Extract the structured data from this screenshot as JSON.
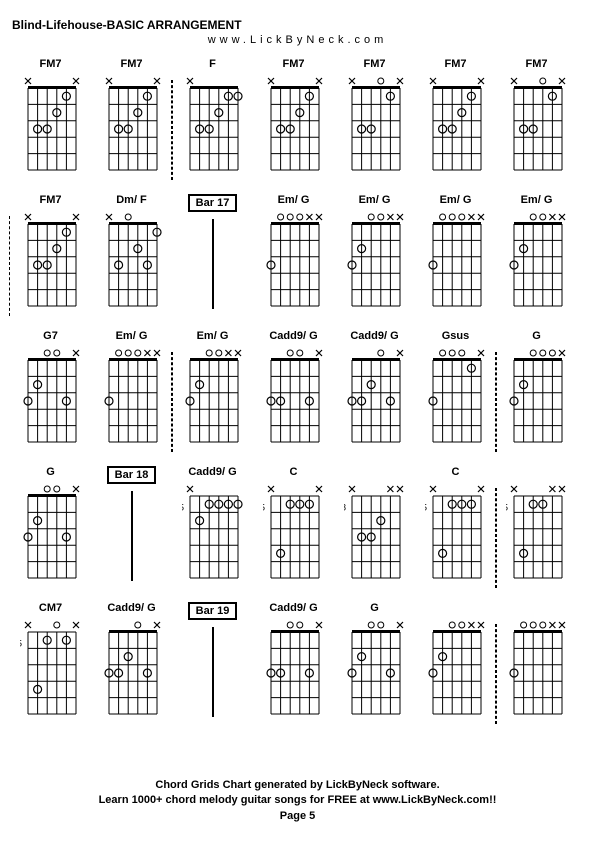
{
  "title": "Blind-Lifehouse-BASIC ARRANGEMENT",
  "subtitle": "www.LickByNeck.com",
  "footer_line1": "Chord Grids Chart generated by LickByNeck software.",
  "footer_line2": "Learn 1000+ chord melody guitar songs for FREE at www.LickByNeck.com!!",
  "footer_page": "Page 5",
  "diagram_style": {
    "strings": 6,
    "frets": 5,
    "grid_color": "#000000",
    "nut_width": 3,
    "line_width": 1,
    "dot_radius": 4,
    "open_radius": 3,
    "mute_size": 6,
    "font_size": 9
  },
  "chords": [
    {
      "label": "FM7",
      "type": "chord",
      "baseFret": 0,
      "markers": {
        "mute": [
          1,
          6
        ],
        "open": [],
        "dots": [
          [
            2,
            1
          ],
          [
            3,
            2
          ],
          [
            4,
            3
          ],
          [
            5,
            3
          ]
        ]
      },
      "dashedLeft": false,
      "dashedRight": false
    },
    {
      "label": "FM7",
      "type": "chord",
      "baseFret": 0,
      "markers": {
        "mute": [
          1,
          6
        ],
        "open": [],
        "dots": [
          [
            2,
            1
          ],
          [
            3,
            2
          ],
          [
            4,
            3
          ],
          [
            5,
            3
          ]
        ]
      },
      "dashedLeft": false,
      "dashedRight": true
    },
    {
      "label": "F",
      "type": "chord",
      "baseFret": 0,
      "markers": {
        "mute": [
          6
        ],
        "open": [],
        "dots": [
          [
            1,
            1
          ],
          [
            2,
            1
          ],
          [
            3,
            2
          ],
          [
            4,
            3
          ],
          [
            5,
            3
          ]
        ]
      },
      "dashedLeft": true,
      "dashedRight": false
    },
    {
      "label": "FM7",
      "type": "chord",
      "baseFret": 0,
      "markers": {
        "mute": [
          1,
          6
        ],
        "open": [],
        "dots": [
          [
            2,
            1
          ],
          [
            3,
            2
          ],
          [
            4,
            3
          ],
          [
            5,
            3
          ]
        ]
      },
      "dashedLeft": false,
      "dashedRight": false
    },
    {
      "label": "FM7",
      "type": "chord",
      "baseFret": 0,
      "markers": {
        "mute": [
          1,
          6
        ],
        "open": [
          3
        ],
        "dots": [
          [
            2,
            1
          ],
          [
            4,
            3
          ],
          [
            5,
            3
          ]
        ]
      },
      "dashedLeft": false,
      "dashedRight": false
    },
    {
      "label": "FM7",
      "type": "chord",
      "baseFret": 0,
      "markers": {
        "mute": [
          1,
          6
        ],
        "open": [],
        "dots": [
          [
            2,
            1
          ],
          [
            3,
            2
          ],
          [
            4,
            3
          ],
          [
            5,
            3
          ]
        ]
      },
      "dashedLeft": false,
      "dashedRight": false
    },
    {
      "label": "FM7",
      "type": "chord",
      "baseFret": 0,
      "markers": {
        "mute": [
          1,
          6
        ],
        "open": [
          3
        ],
        "dots": [
          [
            2,
            1
          ],
          [
            4,
            3
          ],
          [
            5,
            3
          ]
        ]
      },
      "dashedLeft": false,
      "dashedRight": false
    },
    {
      "label": "FM7",
      "type": "chord",
      "baseFret": 0,
      "markers": {
        "mute": [
          1,
          6
        ],
        "open": [],
        "dots": [
          [
            2,
            1
          ],
          [
            3,
            2
          ],
          [
            4,
            3
          ],
          [
            5,
            3
          ]
        ]
      },
      "dashedLeft": true,
      "dashedRight": false
    },
    {
      "label": "Dm/ F",
      "type": "chord",
      "baseFret": 0,
      "markers": {
        "mute": [
          6
        ],
        "open": [
          4
        ],
        "dots": [
          [
            1,
            1
          ],
          [
            2,
            3
          ],
          [
            3,
            2
          ],
          [
            5,
            3
          ]
        ]
      },
      "dashedLeft": false,
      "dashedRight": false
    },
    {
      "label": "Bar 17",
      "type": "bar"
    },
    {
      "label": "Em/ G",
      "type": "chord",
      "baseFret": 0,
      "markers": {
        "mute": [
          1,
          2
        ],
        "open": [
          3,
          4,
          5
        ],
        "dots": [
          [
            6,
            3
          ]
        ]
      },
      "dashedLeft": false,
      "dashedRight": false
    },
    {
      "label": "Em/ G",
      "type": "chord",
      "baseFret": 0,
      "markers": {
        "mute": [
          1,
          2
        ],
        "open": [
          3,
          4
        ],
        "dots": [
          [
            5,
            2
          ],
          [
            6,
            3
          ]
        ]
      },
      "dashedLeft": false,
      "dashedRight": false
    },
    {
      "label": "Em/ G",
      "type": "chord",
      "baseFret": 0,
      "markers": {
        "mute": [
          1,
          2
        ],
        "open": [
          3,
          4,
          5
        ],
        "dots": [
          [
            6,
            3
          ]
        ]
      },
      "dashedLeft": false,
      "dashedRight": false
    },
    {
      "label": "Em/ G",
      "type": "chord",
      "baseFret": 0,
      "markers": {
        "mute": [
          1,
          2
        ],
        "open": [
          3,
          4
        ],
        "dots": [
          [
            5,
            2
          ],
          [
            6,
            3
          ]
        ]
      },
      "dashedLeft": false,
      "dashedRight": false
    },
    {
      "label": "G7",
      "type": "chord",
      "baseFret": 0,
      "markers": {
        "mute": [
          1
        ],
        "open": [
          3,
          4
        ],
        "dots": [
          [
            2,
            3
          ],
          [
            5,
            2
          ],
          [
            6,
            3
          ]
        ]
      },
      "dashedLeft": false,
      "dashedRight": false
    },
    {
      "label": "Em/ G",
      "type": "chord",
      "baseFret": 0,
      "markers": {
        "mute": [
          1,
          2
        ],
        "open": [
          3,
          4,
          5
        ],
        "dots": [
          [
            6,
            3
          ]
        ]
      },
      "dashedLeft": false,
      "dashedRight": true
    },
    {
      "label": "Em/ G",
      "type": "chord",
      "baseFret": 0,
      "markers": {
        "mute": [
          1,
          2
        ],
        "open": [
          3,
          4
        ],
        "dots": [
          [
            5,
            2
          ],
          [
            6,
            3
          ]
        ]
      },
      "dashedLeft": true,
      "dashedRight": false
    },
    {
      "label": "Cadd9/ G",
      "type": "chord",
      "baseFret": 0,
      "markers": {
        "mute": [
          1
        ],
        "open": [
          3,
          4
        ],
        "dots": [
          [
            2,
            3
          ],
          [
            5,
            3
          ],
          [
            6,
            3
          ]
        ]
      },
      "dashedLeft": false,
      "dashedRight": false
    },
    {
      "label": "Cadd9/ G",
      "type": "chord",
      "baseFret": 0,
      "markers": {
        "mute": [
          1
        ],
        "open": [
          3
        ],
        "dots": [
          [
            2,
            3
          ],
          [
            4,
            2
          ],
          [
            5,
            3
          ],
          [
            6,
            3
          ]
        ]
      },
      "dashedLeft": false,
      "dashedRight": false
    },
    {
      "label": "Gsus",
      "type": "chord",
      "baseFret": 0,
      "markers": {
        "mute": [
          1
        ],
        "open": [
          3,
          4,
          5
        ],
        "dots": [
          [
            2,
            1
          ],
          [
            6,
            3
          ]
        ]
      },
      "dashedLeft": false,
      "dashedRight": true
    },
    {
      "label": "G",
      "type": "chord",
      "baseFret": 0,
      "markers": {
        "mute": [
          1
        ],
        "open": [
          2,
          3,
          4
        ],
        "dots": [
          [
            5,
            2
          ],
          [
            6,
            3
          ]
        ]
      },
      "dashedLeft": true,
      "dashedRight": false
    },
    {
      "label": "G",
      "type": "chord",
      "baseFret": 0,
      "markers": {
        "mute": [
          1
        ],
        "open": [
          3,
          4
        ],
        "dots": [
          [
            2,
            3
          ],
          [
            5,
            2
          ],
          [
            6,
            3
          ]
        ]
      },
      "dashedLeft": false,
      "dashedRight": false
    },
    {
      "label": "Bar 18",
      "type": "bar"
    },
    {
      "label": "Cadd9/ G",
      "type": "chord",
      "baseFret": 5,
      "markers": {
        "mute": [
          6
        ],
        "open": [],
        "dots": [
          [
            1,
            1
          ],
          [
            2,
            1
          ],
          [
            3,
            1
          ],
          [
            4,
            1
          ],
          [
            5,
            2
          ]
        ]
      },
      "dashedLeft": false,
      "dashedRight": false
    },
    {
      "label": "C",
      "type": "chord",
      "baseFret": 5,
      "markers": {
        "mute": [
          1,
          6
        ],
        "open": [],
        "dots": [
          [
            2,
            1
          ],
          [
            3,
            1
          ],
          [
            4,
            1
          ],
          [
            5,
            4
          ]
        ]
      },
      "dashedLeft": false,
      "dashedRight": false
    },
    {
      "label": "",
      "type": "chord",
      "baseFret": 8,
      "markers": {
        "mute": [
          1,
          2,
          6
        ],
        "open": [],
        "dots": [
          [
            3,
            2
          ],
          [
            4,
            3
          ],
          [
            5,
            3
          ]
        ]
      },
      "dashedLeft": false,
      "dashedRight": false
    },
    {
      "label": "C",
      "type": "chord",
      "baseFret": 5,
      "markers": {
        "mute": [
          1,
          6
        ],
        "open": [],
        "dots": [
          [
            2,
            1
          ],
          [
            3,
            1
          ],
          [
            4,
            1
          ],
          [
            5,
            4
          ]
        ]
      },
      "dashedLeft": false,
      "dashedRight": true
    },
    {
      "label": "",
      "type": "chord",
      "baseFret": 5,
      "markers": {
        "mute": [
          1,
          2,
          6
        ],
        "open": [],
        "dots": [
          [
            3,
            1
          ],
          [
            4,
            1
          ],
          [
            5,
            4
          ]
        ]
      },
      "dashedLeft": true,
      "dashedRight": false
    },
    {
      "label": "CM7",
      "type": "chord",
      "baseFret": 5,
      "markers": {
        "mute": [
          1,
          6
        ],
        "open": [
          3
        ],
        "dots": [
          [
            2,
            1
          ],
          [
            4,
            1
          ],
          [
            5,
            4
          ]
        ]
      },
      "dashedLeft": false,
      "dashedRight": false
    },
    {
      "label": "Cadd9/ G",
      "type": "chord",
      "baseFret": 0,
      "markers": {
        "mute": [
          1
        ],
        "open": [
          3
        ],
        "dots": [
          [
            2,
            3
          ],
          [
            4,
            2
          ],
          [
            5,
            3
          ],
          [
            6,
            3
          ]
        ]
      },
      "dashedLeft": false,
      "dashedRight": false
    },
    {
      "label": "Bar 19",
      "type": "bar"
    },
    {
      "label": "Cadd9/ G",
      "type": "chord",
      "baseFret": 0,
      "markers": {
        "mute": [
          1
        ],
        "open": [
          3,
          4
        ],
        "dots": [
          [
            2,
            3
          ],
          [
            5,
            3
          ],
          [
            6,
            3
          ]
        ]
      },
      "dashedLeft": false,
      "dashedRight": false
    },
    {
      "label": "G",
      "type": "chord",
      "baseFret": 0,
      "markers": {
        "mute": [
          1
        ],
        "open": [
          3,
          4
        ],
        "dots": [
          [
            2,
            3
          ],
          [
            5,
            2
          ],
          [
            6,
            3
          ]
        ]
      },
      "dashedLeft": false,
      "dashedRight": false
    },
    {
      "label": "",
      "type": "chord",
      "baseFret": 0,
      "markers": {
        "mute": [
          1,
          2
        ],
        "open": [
          3,
          4
        ],
        "dots": [
          [
            5,
            2
          ],
          [
            6,
            3
          ]
        ]
      },
      "dashedLeft": false,
      "dashedRight": true
    },
    {
      "label": "",
      "type": "chord",
      "baseFret": 0,
      "markers": {
        "mute": [
          1,
          2
        ],
        "open": [
          3,
          4,
          5
        ],
        "dots": [
          [
            6,
            3
          ]
        ]
      },
      "dashedLeft": true,
      "dashedRight": false
    }
  ]
}
